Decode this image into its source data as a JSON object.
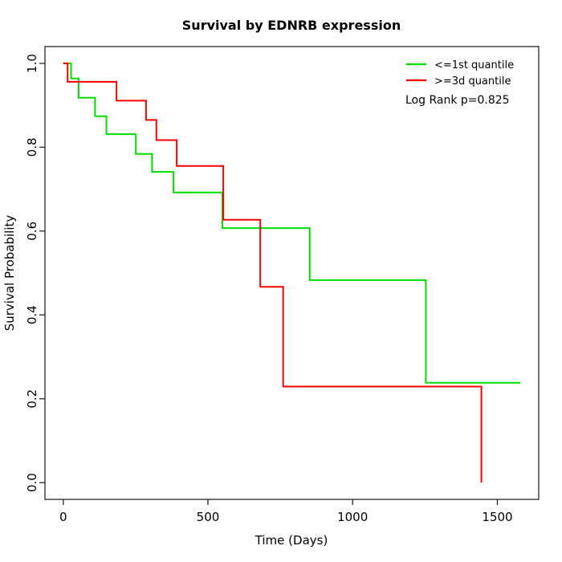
{
  "chart_data": {
    "type": "line",
    "subtype": "kaplan-meier-step",
    "title": "Survival by EDNRB expression",
    "xlabel": "Time (Days)",
    "ylabel": "Survival Probability",
    "xlim": [
      0,
      1580
    ],
    "ylim": [
      0,
      1
    ],
    "axis_pad_frac": 0.04,
    "grid": false,
    "legend_position": "top-right-inside",
    "x_ticks": [
      0,
      500,
      1000,
      1500
    ],
    "x_tick_labels": [
      "0",
      "500",
      "1000",
      "1500"
    ],
    "y_ticks": [
      1.0,
      0.8,
      0.6,
      0.4,
      0.2,
      0.0
    ],
    "y_tick_labels": [
      "1.0",
      "0.8",
      "0.6",
      "0.4",
      "0.2",
      "0.0"
    ],
    "annotation": "Log Rank p=0.825",
    "legend": [
      {
        "label": "<=1st quantile",
        "color": "#00E000"
      },
      {
        "label": ">=3d quantile",
        "color": "#FF0000"
      }
    ],
    "series": [
      {
        "name": "<=1st quantile",
        "color": "#00E000",
        "end_time": 1580,
        "censored_at_end": true,
        "steps": [
          [
            0,
            1.0
          ],
          [
            27,
            0.964
          ],
          [
            53,
            0.918
          ],
          [
            110,
            0.874
          ],
          [
            149,
            0.831
          ],
          [
            251,
            0.784
          ],
          [
            307,
            0.741
          ],
          [
            381,
            0.692
          ],
          [
            550,
            0.607
          ],
          [
            852,
            0.483
          ],
          [
            1253,
            0.238
          ]
        ]
      },
      {
        "name": ">=3d quantile",
        "color": "#FF0000",
        "end_time": 1445,
        "censored_at_end": false,
        "steps": [
          [
            0,
            1.0
          ],
          [
            15,
            0.956
          ],
          [
            184,
            0.911
          ],
          [
            286,
            0.865
          ],
          [
            322,
            0.817
          ],
          [
            392,
            0.755
          ],
          [
            553,
            0.627
          ],
          [
            681,
            0.467
          ],
          [
            760,
            0.229
          ],
          [
            1445,
            0.0
          ]
        ]
      }
    ]
  }
}
